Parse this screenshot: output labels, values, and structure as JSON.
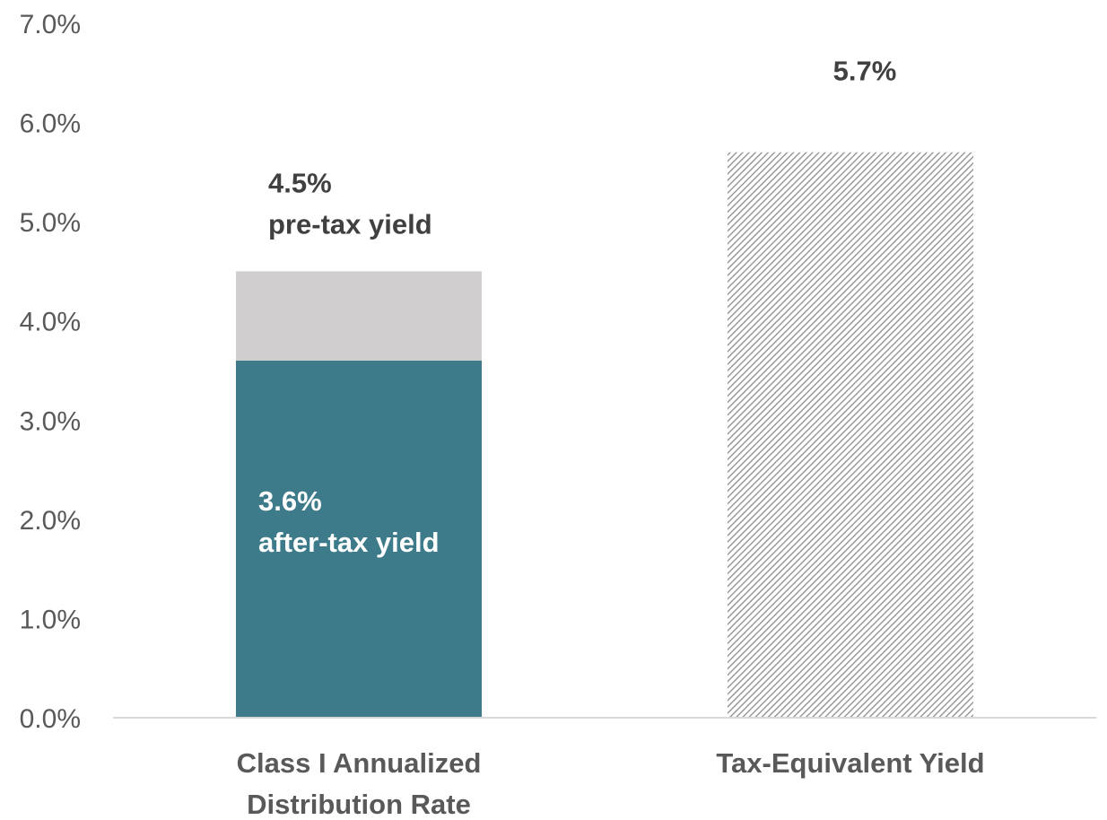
{
  "chart_data": {
    "type": "bar",
    "stacked": true,
    "categories": [
      "Class I Annualized Distribution Rate",
      "Tax-Equivalent Yield"
    ],
    "category_lines": [
      [
        "Class I Annualized",
        "Distribution Rate"
      ],
      [
        "Tax-Equivalent Yield"
      ]
    ],
    "ylim": [
      0,
      7
    ],
    "yticks": [
      "0.0%",
      "1.0%",
      "2.0%",
      "3.0%",
      "4.0%",
      "5.0%",
      "6.0%",
      "7.0%"
    ],
    "grid": false,
    "legend": "none",
    "bars": [
      {
        "category": "Class I Annualized Distribution Rate",
        "segments": [
          {
            "value": 3.6,
            "color": "#3d7b8a",
            "label_lines": [
              "3.6%",
              "after-tax yield"
            ],
            "label_position": "inside"
          },
          {
            "value": 0.9,
            "color": "#d0cece",
            "label_lines": [
              "4.5%",
              "pre-tax yield"
            ],
            "label_position": "above"
          }
        ]
      },
      {
        "category": "Tax-Equivalent Yield",
        "segments": [
          {
            "value": 5.7,
            "color": "#a6a6a6",
            "pattern": "diagonal-hatch",
            "label_lines": [
              "5.7%"
            ],
            "label_position": "above"
          }
        ]
      }
    ]
  }
}
